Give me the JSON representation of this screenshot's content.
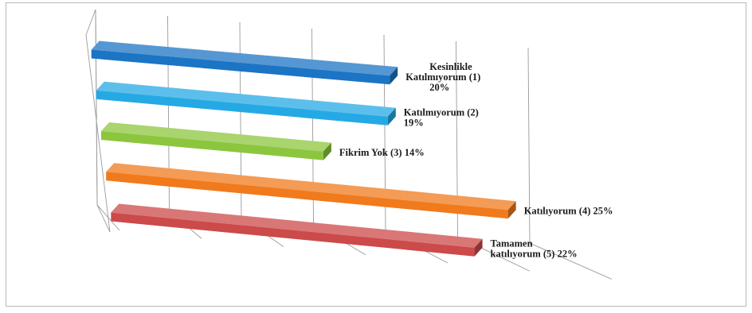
{
  "chart_data": {
    "type": "bar",
    "orientation": "horizontal",
    "style": "3d",
    "grid": true,
    "legend": "none",
    "xlim": [
      0,
      30
    ],
    "categories": [
      "Kesinlikle Katılmıyorum (1)",
      "Katılmıyorum (2)",
      "Fikrim Yok (3)",
      "Katılıyorum (4)",
      "Tamamen katılıyorum (5)"
    ],
    "values": [
      20,
      19,
      14,
      25,
      22
    ],
    "unit": "%",
    "colors": [
      "#1c74c4",
      "#25a9e4",
      "#8cc63e",
      "#f07a1c",
      "#cc4a4a"
    ],
    "data_labels": [
      [
        "Kesinlikle",
        "Katılmıyorum  (1)",
        "20%"
      ],
      [
        "Katılmıyorum (2)",
        "19%"
      ],
      [
        "Fikrim  Yok (3) 14%"
      ],
      [
        "Katılıyorum (4) 25%"
      ],
      [
        "Tamamen",
        "katılıyorum (5) 22%"
      ]
    ]
  }
}
